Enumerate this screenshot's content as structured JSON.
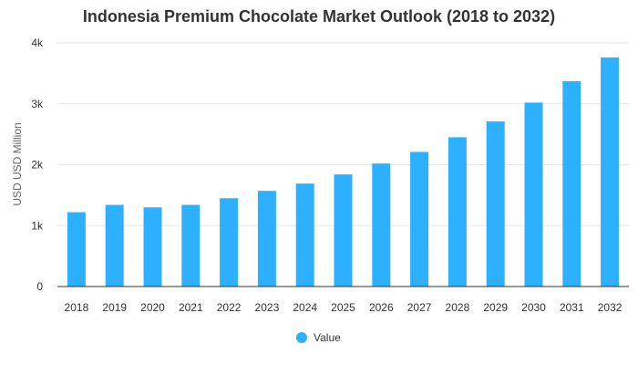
{
  "chart_data": {
    "type": "bar",
    "title": "Indonesia Premium Chocolate Market Outlook (2018 to 2032)",
    "xlabel": "",
    "ylabel": "USD USD Million",
    "categories": [
      "2018",
      "2019",
      "2020",
      "2021",
      "2022",
      "2023",
      "2024",
      "2025",
      "2026",
      "2027",
      "2028",
      "2029",
      "2030",
      "2031",
      "2032"
    ],
    "series": [
      {
        "name": "Value",
        "values": [
          1220,
          1340,
          1300,
          1340,
          1450,
          1570,
          1690,
          1840,
          2020,
          2210,
          2450,
          2710,
          3020,
          3370,
          3760
        ]
      }
    ],
    "ylim": [
      0,
      4000
    ],
    "yticks": [
      0,
      1000,
      2000,
      3000,
      4000
    ],
    "ytick_labels": [
      "0",
      "1k",
      "2k",
      "3k",
      "4k"
    ],
    "grid": true,
    "legend_position": "bottom",
    "color": "#2db0ff"
  }
}
